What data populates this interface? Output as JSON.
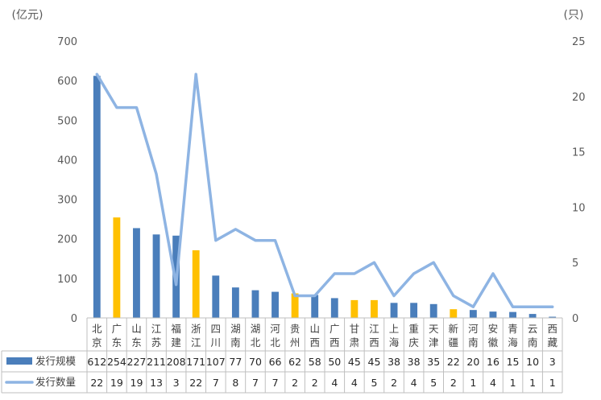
{
  "chart_data": {
    "type": "bar",
    "unit_left": "(亿元)",
    "unit_right": "(只)",
    "ylim_left": [
      0,
      700
    ],
    "ylim_right": [
      0,
      25
    ],
    "left_ticks": [
      "0",
      "100",
      "200",
      "300",
      "400",
      "500",
      "600",
      "700"
    ],
    "right_ticks": [
      "0",
      "5",
      "10",
      "15",
      "20",
      "25"
    ],
    "categories": [
      "北京",
      "广东",
      "山东",
      "江苏",
      "福建",
      "浙江",
      "四川",
      "湖南",
      "湖北",
      "河北",
      "贵州",
      "山西",
      "广西",
      "甘肃",
      "江西",
      "上海",
      "重庆",
      "天津",
      "新疆",
      "河南",
      "安徽",
      "青海",
      "云南",
      "西藏"
    ],
    "highlighted": [
      "广东",
      "浙江",
      "贵州",
      "甘肃",
      "江西",
      "新疆"
    ],
    "series": [
      {
        "name": "发行规模",
        "type": "bar",
        "axis": "left",
        "values": [
          612,
          254,
          227,
          211,
          208,
          171,
          107,
          77,
          70,
          66,
          62,
          58,
          50,
          45,
          45,
          38,
          38,
          35,
          22,
          20,
          16,
          15,
          10,
          3
        ]
      },
      {
        "name": "发行数量",
        "type": "line",
        "axis": "right",
        "values": [
          22,
          19,
          19,
          13,
          3,
          22,
          7,
          8,
          7,
          7,
          2,
          2,
          4,
          4,
          5,
          2,
          4,
          5,
          2,
          1,
          4,
          1,
          1,
          1
        ]
      }
    ],
    "colors": {
      "bar": "#4a7ebb",
      "bar_highlight": "#ffc000",
      "line": "#8eb4e3",
      "axis": "#bfbfbf"
    },
    "legend": "data-table"
  }
}
